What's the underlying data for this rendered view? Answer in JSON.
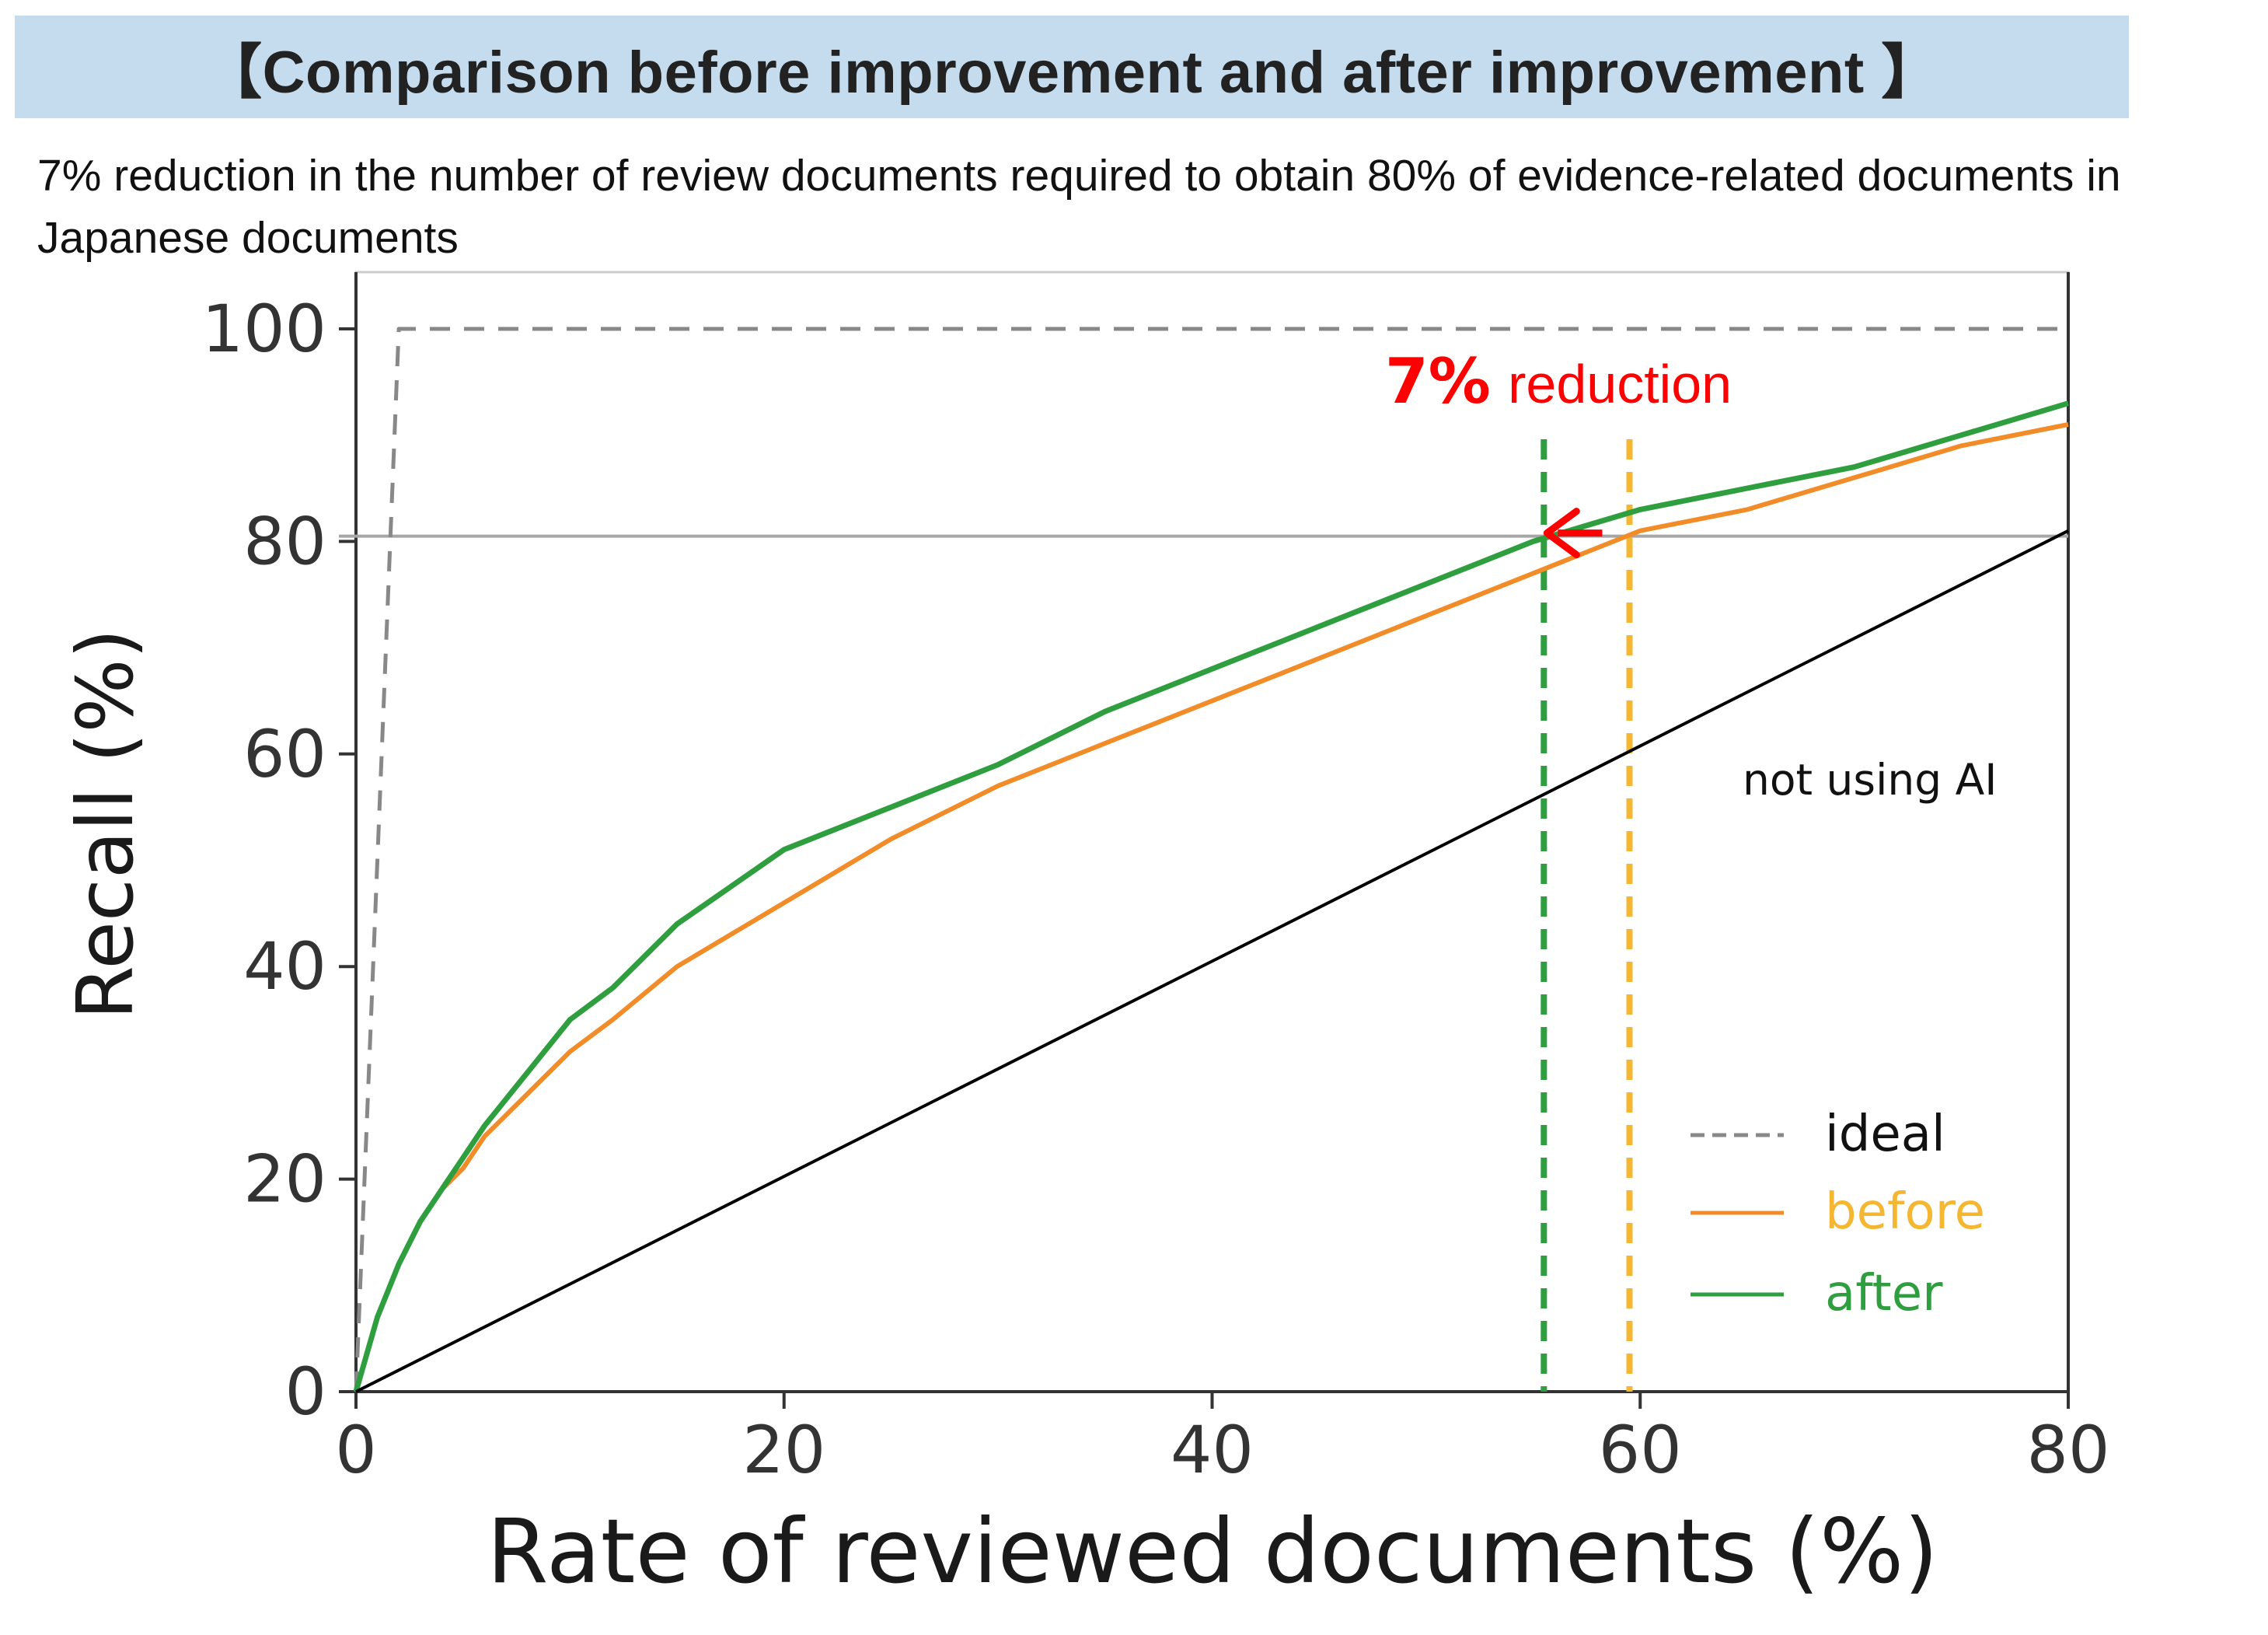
{
  "header": {
    "title": "【Comparison before improvement and after improvement 】",
    "subtitle": "7% reduction in the number of review documents required to obtain 80% of evidence-related documents in Japanese documents"
  },
  "chart_data": {
    "type": "line",
    "xlabel": "Rate of reviewed documents (%)",
    "ylabel": "Recall (%)",
    "xlim": [
      0,
      80
    ],
    "ylim": [
      0,
      100
    ],
    "xticks": [
      "0",
      "20",
      "40",
      "60",
      "80"
    ],
    "yticks": [
      "0",
      "20",
      "40",
      "60",
      "80",
      "100"
    ],
    "grid": false,
    "legend_position": "bottom-right",
    "colors": {
      "ideal": "#888888",
      "before": "#f28c28",
      "after": "#2e9e3e",
      "no_ai": "#000000",
      "threshold": "#a6a6a6",
      "after_marker": "#2e9e3e",
      "before_marker": "#f5b731",
      "arrow": "#ff0000"
    },
    "series": [
      {
        "name": "ideal",
        "style": "dashed",
        "x": [
          0,
          2,
          80
        ],
        "y": [
          0,
          100,
          100
        ]
      },
      {
        "name": "before",
        "style": "solid",
        "x": [
          0,
          1,
          2,
          3,
          4,
          5,
          6,
          8,
          10,
          12,
          15,
          20,
          25,
          30,
          35,
          40,
          45,
          50,
          55,
          60,
          65,
          70,
          75,
          80
        ],
        "y": [
          0,
          7,
          12,
          16,
          19,
          21,
          24,
          28,
          32,
          35,
          40,
          46,
          52,
          57,
          61,
          65,
          69,
          73,
          77,
          81,
          83,
          86,
          89,
          91
        ]
      },
      {
        "name": "after",
        "style": "solid",
        "x": [
          0,
          1,
          2,
          3,
          4,
          5,
          6,
          8,
          10,
          12,
          15,
          20,
          25,
          30,
          35,
          40,
          45,
          50,
          55,
          60,
          65,
          70,
          75,
          80
        ],
        "y": [
          0,
          7,
          12,
          16,
          19,
          22,
          25,
          30,
          35,
          38,
          44,
          51,
          55,
          59,
          64,
          68,
          72,
          76,
          80,
          83,
          85,
          87,
          90,
          93
        ]
      },
      {
        "name": "not using AI",
        "style": "solid",
        "x": [
          0,
          80
        ],
        "y": [
          0,
          81
        ]
      }
    ],
    "reference_lines": {
      "recall_threshold": 80.5,
      "after_x": 55.5,
      "before_x": 59.5
    },
    "annotations": {
      "reduction_bold": "7%",
      "reduction_text": " reduction",
      "no_ai_label": "not using AI"
    },
    "legend": [
      {
        "label": "ideal",
        "series": "ideal",
        "text_color": "#111111"
      },
      {
        "label": "before",
        "series": "before",
        "text_color": "#f5b731"
      },
      {
        "label": "after",
        "series": "after",
        "text_color": "#2e9e3e"
      }
    ]
  }
}
